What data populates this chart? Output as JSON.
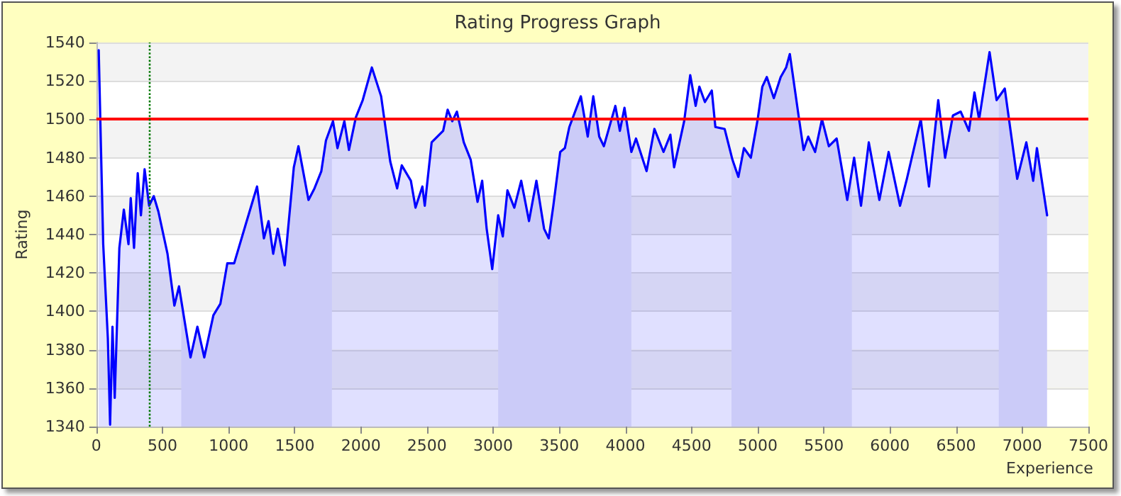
{
  "chart_data": {
    "type": "area",
    "title": "Rating Progress Graph",
    "xlabel": "Experience",
    "ylabel": "Rating",
    "x": [
      18,
      35,
      52,
      87,
      104,
      122,
      139,
      174,
      208,
      243,
      260,
      285,
      313,
      337,
      365,
      399,
      434,
      469,
      538,
      590,
      625,
      660,
      712,
      764,
      816,
      885,
      938,
      990,
      1042,
      1128,
      1215,
      1267,
      1302,
      1337,
      1372,
      1424,
      1493,
      1528,
      1604,
      1649,
      1701,
      1736,
      1789,
      1823,
      1875,
      1910,
      1962,
      2014,
      2083,
      2153,
      2222,
      2274,
      2309,
      2378,
      2413,
      2465,
      2483,
      2535,
      2622,
      2656,
      2691,
      2726,
      2778,
      2830,
      2882,
      2917,
      2951,
      2993,
      3038,
      3073,
      3108,
      3160,
      3212,
      3271,
      3327,
      3385,
      3420,
      3455,
      3507,
      3542,
      3576,
      3663,
      3715,
      3757,
      3802,
      3837,
      3924,
      3958,
      3993,
      4045,
      4080,
      4160,
      4219,
      4288,
      4340,
      4368,
      4444,
      4490,
      4531,
      4559,
      4601,
      4653,
      4680,
      4750,
      4809,
      4854,
      4896,
      4948,
      5000,
      5035,
      5069,
      5122,
      5174,
      5215,
      5243,
      5313,
      5347,
      5382,
      5434,
      5486,
      5538,
      5597,
      5677,
      5729,
      5781,
      5840,
      5920,
      5990,
      6076,
      6128,
      6233,
      6295,
      6365,
      6417,
      6476,
      6535,
      6597,
      6639,
      6674,
      6753,
      6806,
      6868,
      6962,
      7031,
      7083,
      7111,
      7188
    ],
    "series": [
      {
        "color": "#0000ff",
        "values": [
          1536,
          1485,
          1435,
          1386,
          1341,
          1392,
          1355,
          1433,
          1453,
          1435,
          1459,
          1433,
          1472,
          1450,
          1474,
          1455,
          1460,
          1452,
          1430,
          1403,
          1413,
          1398,
          1376,
          1392,
          1376,
          1398,
          1404,
          1425,
          1425,
          1445,
          1465,
          1438,
          1447,
          1430,
          1443,
          1424,
          1475,
          1486,
          1458,
          1464,
          1473,
          1489,
          1499,
          1485,
          1499,
          1484,
          1501,
          1510,
          1527,
          1512,
          1478,
          1464,
          1476,
          1468,
          1454,
          1465,
          1455,
          1488,
          1494,
          1505,
          1499,
          1504,
          1488,
          1479,
          1457,
          1468,
          1443,
          1422,
          1450,
          1439,
          1463,
          1454,
          1468,
          1447,
          1468,
          1443,
          1438,
          1455,
          1483,
          1485,
          1496,
          1512,
          1491,
          1512,
          1491,
          1486,
          1507,
          1494,
          1506,
          1483,
          1490,
          1473,
          1495,
          1483,
          1492,
          1475,
          1499,
          1523,
          1507,
          1517,
          1509,
          1515,
          1496,
          1495,
          1479,
          1470,
          1485,
          1480,
          1500,
          1517,
          1522,
          1511,
          1522,
          1527,
          1534,
          1500,
          1484,
          1491,
          1483,
          1500,
          1486,
          1490,
          1458,
          1480,
          1455,
          1488,
          1458,
          1483,
          1455,
          1469,
          1500,
          1465,
          1510,
          1480,
          1502,
          1504,
          1494,
          1514,
          1500,
          1535,
          1510,
          1516,
          1469,
          1488,
          1468,
          1485,
          1450
        ]
      }
    ],
    "xlim": [
      0,
      7500
    ],
    "xticks": [
      0,
      500,
      1000,
      1500,
      2000,
      2500,
      3000,
      3500,
      4000,
      4500,
      5000,
      5500,
      6000,
      6500,
      7000,
      7500
    ],
    "ylim": [
      1340,
      1540
    ],
    "yticks": [
      1340,
      1360,
      1380,
      1400,
      1420,
      1440,
      1460,
      1480,
      1500,
      1520,
      1540
    ],
    "grid": "y",
    "marker": "none",
    "line_style": "solid",
    "ref_lines": [
      {
        "axis": "y",
        "value": 1500,
        "color": "#ff0000",
        "line_style": "solid"
      },
      {
        "axis": "x",
        "value": 400,
        "color": "#007700",
        "line_style": "dotted"
      }
    ],
    "bands": [
      {
        "axis": "x",
        "from": 642,
        "to": 1781,
        "color": "#e8e8f8"
      },
      {
        "axis": "x",
        "from": 3038,
        "to": 4045,
        "color": "#e8e8f8"
      },
      {
        "axis": "x",
        "from": 4802,
        "to": 5712,
        "color": "#e8e8f8"
      },
      {
        "axis": "x",
        "from": 6823,
        "to": 7188,
        "color": "#e8e8f8"
      }
    ]
  }
}
